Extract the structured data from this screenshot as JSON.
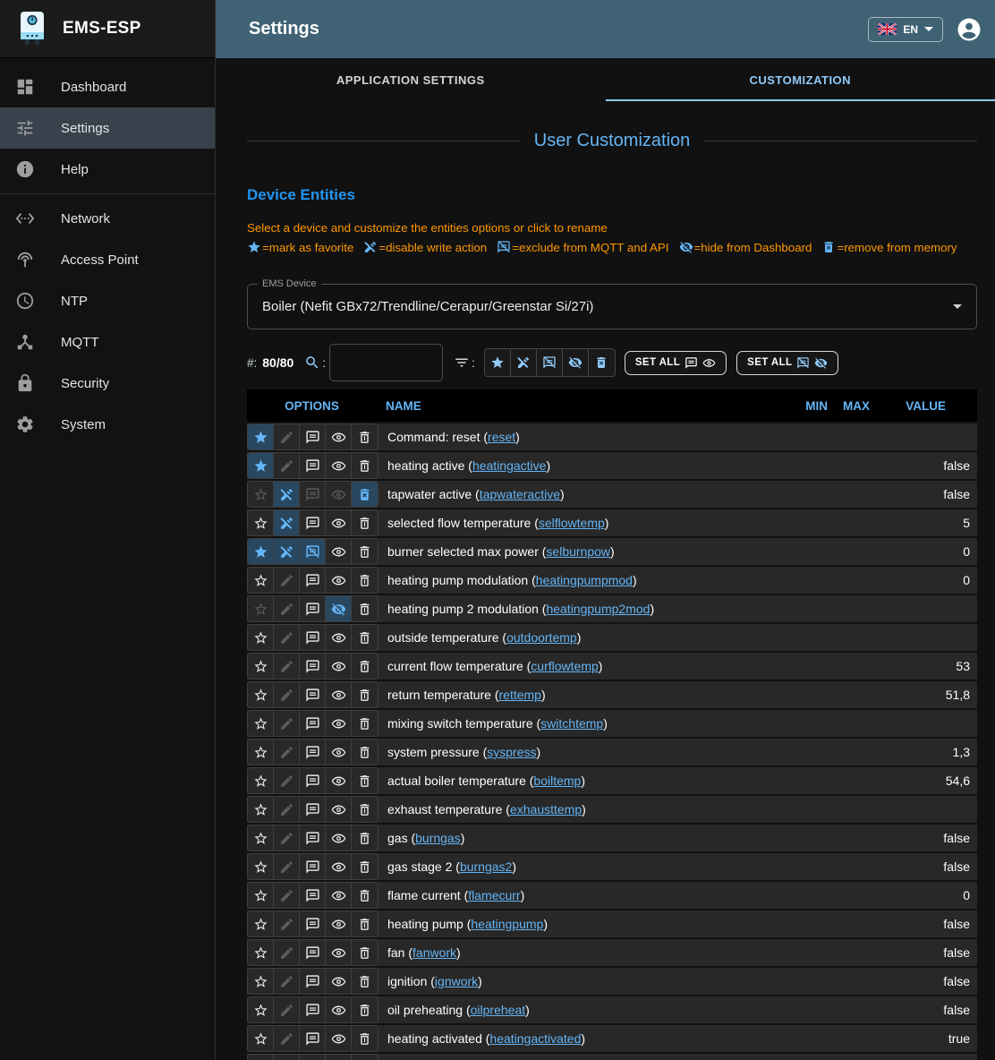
{
  "app": {
    "brand": "EMS-ESP",
    "page_title": "Settings"
  },
  "header": {
    "language": "EN"
  },
  "colors": {
    "accent": "#64b5f6",
    "appbar": "#3f6374",
    "warning": "#ff9800",
    "active_cell": "#29475f",
    "tab_active": "#90caf9"
  },
  "sidebar": {
    "items": [
      {
        "icon": "dashboard",
        "label": "Dashboard",
        "active": false
      },
      {
        "icon": "tune",
        "label": "Settings",
        "active": true
      },
      {
        "icon": "info",
        "label": "Help",
        "active": false,
        "divider_after": true
      },
      {
        "icon": "ethernet",
        "label": "Network",
        "active": false
      },
      {
        "icon": "wifi",
        "label": "Access Point",
        "active": false
      },
      {
        "icon": "clock",
        "label": "NTP",
        "active": false
      },
      {
        "icon": "hub",
        "label": "MQTT",
        "active": false
      },
      {
        "icon": "lock",
        "label": "Security",
        "active": false
      },
      {
        "icon": "gear",
        "label": "System",
        "active": false
      }
    ]
  },
  "tabs": [
    {
      "label": "APPLICATION SETTINGS",
      "active": false
    },
    {
      "label": "CUSTOMIZATION",
      "active": true
    }
  ],
  "customization": {
    "title": "User Customization",
    "section_title": "Device Entities",
    "instruction": "Select a device and customize the entities options or click to rename",
    "legend": [
      {
        "icon": "star",
        "text": "=mark as favorite"
      },
      {
        "icon": "edit_off",
        "text": "=disable write action"
      },
      {
        "icon": "comment_off",
        "text": "=exclude from MQTT and API"
      },
      {
        "icon": "eye_off",
        "text": "=hide from Dashboard"
      },
      {
        "icon": "delete_forever",
        "text": "=remove from memory"
      }
    ],
    "device_select": {
      "label": "EMS Device",
      "value": "Boiler (Nefit GBx72/Trendline/Cerapur/Greenstar Si/27i)"
    },
    "filter": {
      "count_label": "#:",
      "count": "80/80",
      "search_value": "",
      "toggles": [
        "star",
        "edit_off",
        "comment_off",
        "eye_off",
        "delete_forever"
      ],
      "set_all_show": {
        "label": "SET ALL",
        "icons": [
          "comment",
          "eye"
        ]
      },
      "set_all_hide": {
        "label": "SET ALL",
        "icons": [
          "comment_off",
          "eye_off"
        ]
      }
    }
  },
  "table": {
    "columns": {
      "options": "OPTIONS",
      "name": "NAME",
      "min": "MIN",
      "max": "MAX",
      "value": "VALUE"
    },
    "rows": [
      {
        "label": "Command: reset",
        "shortname": "reset",
        "min": "",
        "max": "",
        "value": "",
        "options": [
          "a",
          "d",
          "n",
          "n",
          "n"
        ]
      },
      {
        "label": "heating active",
        "shortname": "heatingactive",
        "min": "",
        "max": "",
        "value": "false",
        "options": [
          "a",
          "d",
          "n",
          "n",
          "n"
        ]
      },
      {
        "label": "tapwater active",
        "shortname": "tapwateractive",
        "min": "",
        "max": "",
        "value": "false",
        "options": [
          "d",
          "a",
          "d",
          "d",
          "a"
        ]
      },
      {
        "label": "selected flow temperature",
        "shortname": "selflowtemp",
        "min": "",
        "max": "",
        "value": "5",
        "options": [
          "n",
          "a",
          "n",
          "n",
          "n"
        ]
      },
      {
        "label": "burner selected max power",
        "shortname": "selburnpow",
        "min": "",
        "max": "",
        "value": "0",
        "options": [
          "a",
          "a",
          "a",
          "n",
          "n"
        ]
      },
      {
        "label": "heating pump modulation",
        "shortname": "heatingpumpmod",
        "min": "",
        "max": "",
        "value": "0",
        "options": [
          "n",
          "d",
          "n",
          "n",
          "n"
        ]
      },
      {
        "label": "heating pump 2 modulation",
        "shortname": "heatingpump2mod",
        "min": "",
        "max": "",
        "value": "",
        "options": [
          "d",
          "d",
          "n",
          "a",
          "n"
        ]
      },
      {
        "label": "outside temperature",
        "shortname": "outdoortemp",
        "min": "",
        "max": "",
        "value": "",
        "options": [
          "n",
          "d",
          "n",
          "n",
          "n"
        ]
      },
      {
        "label": "current flow temperature",
        "shortname": "curflowtemp",
        "min": "",
        "max": "",
        "value": "53",
        "options": [
          "n",
          "d",
          "n",
          "n",
          "n"
        ]
      },
      {
        "label": "return temperature",
        "shortname": "rettemp",
        "min": "",
        "max": "",
        "value": "51,8",
        "options": [
          "n",
          "d",
          "n",
          "n",
          "n"
        ]
      },
      {
        "label": "mixing switch temperature",
        "shortname": "switchtemp",
        "min": "",
        "max": "",
        "value": "",
        "options": [
          "n",
          "d",
          "n",
          "n",
          "n"
        ]
      },
      {
        "label": "system pressure",
        "shortname": "syspress",
        "min": "",
        "max": "",
        "value": "1,3",
        "options": [
          "n",
          "d",
          "n",
          "n",
          "n"
        ]
      },
      {
        "label": "actual boiler temperature",
        "shortname": "boiltemp",
        "min": "",
        "max": "",
        "value": "54,6",
        "options": [
          "n",
          "d",
          "n",
          "n",
          "n"
        ]
      },
      {
        "label": "exhaust temperature",
        "shortname": "exhausttemp",
        "min": "",
        "max": "",
        "value": "",
        "options": [
          "n",
          "d",
          "n",
          "n",
          "n"
        ]
      },
      {
        "label": "gas",
        "shortname": "burngas",
        "min": "",
        "max": "",
        "value": "false",
        "options": [
          "n",
          "d",
          "n",
          "n",
          "n"
        ]
      },
      {
        "label": "gas stage 2",
        "shortname": "burngas2",
        "min": "",
        "max": "",
        "value": "false",
        "options": [
          "n",
          "d",
          "n",
          "n",
          "n"
        ]
      },
      {
        "label": "flame current",
        "shortname": "flamecurr",
        "min": "",
        "max": "",
        "value": "0",
        "options": [
          "n",
          "d",
          "n",
          "n",
          "n"
        ]
      },
      {
        "label": "heating pump",
        "shortname": "heatingpump",
        "min": "",
        "max": "",
        "value": "false",
        "options": [
          "n",
          "d",
          "n",
          "n",
          "n"
        ]
      },
      {
        "label": "fan",
        "shortname": "fanwork",
        "min": "",
        "max": "",
        "value": "false",
        "options": [
          "n",
          "d",
          "n",
          "n",
          "n"
        ]
      },
      {
        "label": "ignition",
        "shortname": "ignwork",
        "min": "",
        "max": "",
        "value": "false",
        "options": [
          "n",
          "d",
          "n",
          "n",
          "n"
        ]
      },
      {
        "label": "oil preheating",
        "shortname": "oilpreheat",
        "min": "",
        "max": "",
        "value": "false",
        "options": [
          "n",
          "d",
          "n",
          "n",
          "n"
        ]
      },
      {
        "label": "heating activated",
        "shortname": "heatingactivated",
        "min": "",
        "max": "",
        "value": "true",
        "options": [
          "n",
          "d",
          "n",
          "n",
          "n"
        ]
      },
      {
        "label": "",
        "shortname": "",
        "min": "",
        "max": "",
        "value": "",
        "options": [
          "n",
          "d",
          "n",
          "n",
          "n"
        ]
      }
    ]
  }
}
